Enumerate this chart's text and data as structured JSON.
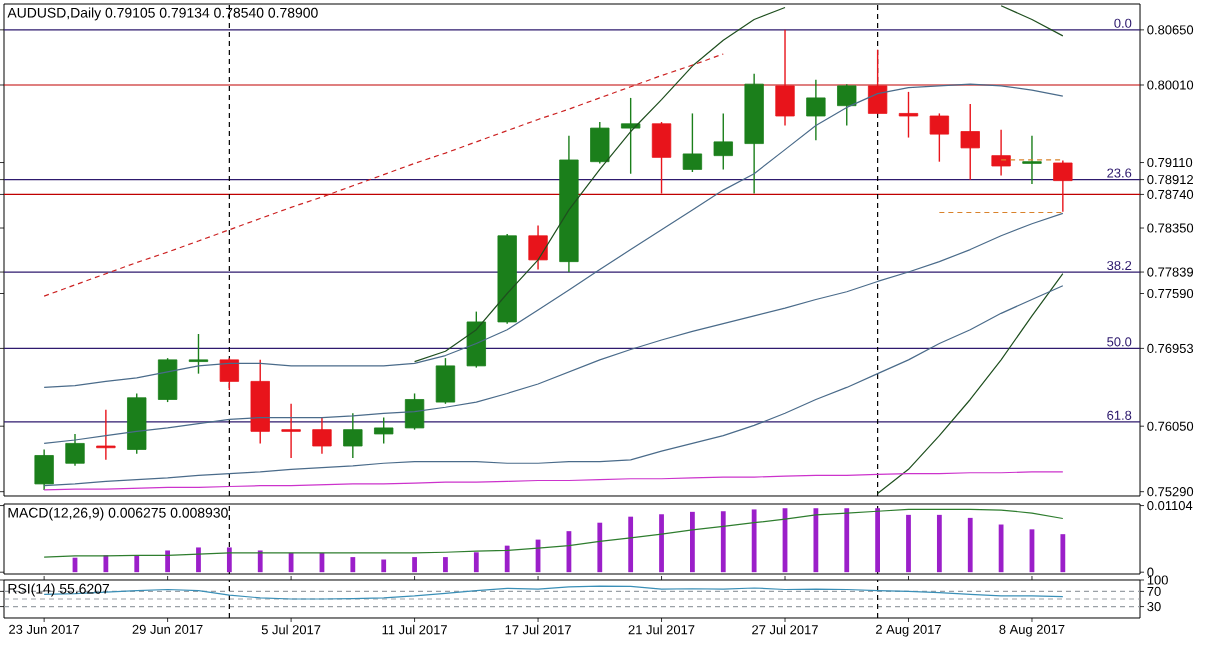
{
  "chart_data": [
    {
      "type": "candlestick",
      "title": "AUDUSD,Daily  0.79105 0.79134 0.78540 0.78900",
      "categories": [
        null,
        null,
        null,
        null,
        null,
        null,
        null,
        null,
        null,
        null,
        null,
        null,
        null,
        null,
        null,
        null,
        null,
        null,
        null,
        null,
        null,
        null,
        null,
        null,
        null,
        null,
        null,
        null,
        null,
        null,
        null,
        null,
        null,
        null
      ],
      "ohlc": [
        [
          0.7538,
          0.7578,
          0.7531,
          0.7571
        ],
        [
          0.7562,
          0.7596,
          0.7559,
          0.7585
        ],
        [
          0.7582,
          0.7624,
          0.7566,
          0.758
        ],
        [
          0.7578,
          0.7643,
          0.7573,
          0.7638
        ],
        [
          0.7636,
          0.7684,
          0.7633,
          0.7682
        ],
        [
          0.768,
          0.7712,
          0.7666,
          0.7682
        ],
        [
          0.7682,
          0.7684,
          0.7647,
          0.7657
        ],
        [
          0.7657,
          0.7682,
          0.7585,
          0.7599
        ],
        [
          0.7601,
          0.7631,
          0.7568,
          0.7599
        ],
        [
          0.7601,
          0.7615,
          0.7573,
          0.7582
        ],
        [
          0.7582,
          0.762,
          0.7568,
          0.7601
        ],
        [
          0.7596,
          0.7615,
          0.7585,
          0.7603
        ],
        [
          0.7603,
          0.7643,
          0.7601,
          0.7636
        ],
        [
          0.7633,
          0.7684,
          0.7631,
          0.7675
        ],
        [
          0.7675,
          0.7738,
          0.7673,
          0.7726
        ],
        [
          0.7726,
          0.7828,
          0.7724,
          0.7826
        ],
        [
          0.7826,
          0.7838,
          0.7787,
          0.7798
        ],
        [
          0.7796,
          0.7942,
          0.7784,
          0.7914
        ],
        [
          0.7912,
          0.7958,
          0.791,
          0.7951
        ],
        [
          0.7951,
          0.7986,
          0.7898,
          0.7956
        ],
        [
          0.7956,
          0.7958,
          0.7875,
          0.7917
        ],
        [
          0.7903,
          0.7968,
          0.79,
          0.7921
        ],
        [
          0.7919,
          0.7968,
          0.7903,
          0.7935
        ],
        [
          0.7933,
          0.8014,
          0.7875,
          0.8002
        ],
        [
          0.8,
          0.8065,
          0.7954,
          0.7965
        ],
        [
          0.7965,
          0.8007,
          0.7937,
          0.7986
        ],
        [
          0.7977,
          0.8002,
          0.7954,
          0.8
        ],
        [
          0.8,
          0.8042,
          0.7968,
          0.7968
        ],
        [
          0.7968,
          0.7993,
          0.794,
          0.7965
        ],
        [
          0.7965,
          0.7968,
          0.7912,
          0.7944
        ],
        [
          0.7947,
          0.7979,
          0.7891,
          0.7928
        ],
        [
          0.7919,
          0.7949,
          0.7896,
          0.7907
        ],
        [
          0.791,
          0.7942,
          0.7886,
          0.7912
        ],
        [
          0.79105,
          0.79134,
          0.7854,
          0.789
        ]
      ],
      "series": [
        {
          "type": "line",
          "color": "#1f4f1f",
          "values": [
            null,
            null,
            null,
            null,
            null,
            null,
            null,
            null,
            null,
            null,
            null,
            null,
            0.768,
            0.7692,
            0.7717,
            0.7759,
            0.7798,
            0.7856,
            0.7903,
            0.7947,
            0.7984,
            0.8023,
            0.8053,
            0.8077,
            0.8091,
            null,
            null,
            null,
            null,
            null,
            null,
            0.8093,
            0.8077,
            0.8058
          ]
        },
        {
          "type": "line",
          "color": "#1f4f1f",
          "values": [
            null,
            null,
            null,
            null,
            null,
            null,
            null,
            null,
            null,
            null,
            null,
            null,
            null,
            null,
            null,
            null,
            null,
            null,
            null,
            null,
            null,
            null,
            null,
            null,
            null,
            null,
            null,
            0.7527,
            0.7555,
            0.7594,
            0.7636,
            0.7682,
            0.7733,
            0.7782
          ]
        },
        {
          "type": "line",
          "color": "#4a6b8a",
          "values": [
            0.765,
            0.7652,
            0.7657,
            0.7661,
            0.7668,
            0.7675,
            0.7678,
            0.7678,
            0.7675,
            0.7675,
            0.7675,
            0.7675,
            0.7678,
            0.7687,
            0.7701,
            0.7717,
            0.774,
            0.7763,
            0.7787,
            0.781,
            0.7833,
            0.7856,
            0.7879,
            0.7898,
            0.7926,
            0.7954,
            0.7975,
            0.7991,
            0.7998,
            0.8,
            0.8002,
            0.8,
            0.7995,
            0.7988
          ]
        },
        {
          "type": "line",
          "color": "#4a6b8a",
          "values": [
            0.7585,
            0.7589,
            0.7594,
            0.7599,
            0.7603,
            0.7608,
            0.7613,
            0.7615,
            0.7615,
            0.7615,
            0.7617,
            0.762,
            0.7622,
            0.7627,
            0.7633,
            0.7643,
            0.7654,
            0.7668,
            0.7682,
            0.7694,
            0.7705,
            0.7715,
            0.7724,
            0.7733,
            0.7742,
            0.7752,
            0.7761,
            0.7773,
            0.7784,
            0.7796,
            0.781,
            0.7826,
            0.784,
            0.7852
          ]
        },
        {
          "type": "line",
          "color": "#4a6b8a",
          "values": [
            0.7536,
            0.7538,
            0.7541,
            0.7543,
            0.7545,
            0.7548,
            0.755,
            0.7552,
            0.7555,
            0.7557,
            0.7559,
            0.7562,
            0.7564,
            0.7564,
            0.7564,
            0.7562,
            0.7562,
            0.7564,
            0.7564,
            0.7566,
            0.7576,
            0.7585,
            0.7594,
            0.7606,
            0.762,
            0.7636,
            0.765,
            0.7666,
            0.7682,
            0.7701,
            0.7717,
            0.7736,
            0.7752,
            0.7768
          ]
        },
        {
          "type": "line",
          "color": "#cc33cc",
          "values": [
            0.7531,
            0.7532,
            0.7532,
            0.7533,
            0.7534,
            0.7534,
            0.7535,
            0.7536,
            0.7536,
            0.7537,
            0.7538,
            0.7538,
            0.7539,
            0.754,
            0.754,
            0.7541,
            0.7542,
            0.7542,
            0.7543,
            0.7544,
            0.7544,
            0.7545,
            0.7546,
            0.7546,
            0.7547,
            0.7548,
            0.7548,
            0.7549,
            0.755,
            0.755,
            0.7551,
            0.7551,
            0.7552,
            0.7552
          ]
        },
        {
          "type": "line",
          "color": "#cc2222",
          "line_style": "dashed",
          "values": [
            0.7756,
            0.7769,
            0.7782,
            0.7795,
            0.7807,
            0.782,
            0.7833,
            0.7846,
            0.7859,
            0.7871,
            0.7884,
            0.7897,
            0.791,
            0.7922,
            0.7935,
            0.7948,
            0.7961,
            0.7973,
            0.7986,
            0.7999,
            0.8012,
            0.8024,
            0.8037,
            null,
            null,
            null,
            null,
            null,
            null,
            null,
            null,
            null,
            null,
            null
          ]
        },
        {
          "type": "line",
          "color": "#d9822b",
          "line_style": "dashed",
          "values": [
            null,
            null,
            null,
            null,
            null,
            null,
            null,
            null,
            null,
            null,
            null,
            null,
            null,
            null,
            null,
            null,
            null,
            null,
            null,
            null,
            null,
            null,
            null,
            null,
            null,
            null,
            null,
            null,
            null,
            0.7853,
            0.7853,
            0.7853,
            0.7853,
            0.7853
          ]
        },
        {
          "type": "line",
          "color": "#d9822b",
          "line_style": "dashed",
          "values": [
            null,
            null,
            null,
            null,
            null,
            null,
            null,
            null,
            null,
            null,
            null,
            null,
            null,
            null,
            null,
            null,
            null,
            null,
            null,
            null,
            null,
            null,
            null,
            null,
            null,
            null,
            null,
            null,
            null,
            null,
            null,
            0.7914,
            0.7914,
            0.7914
          ]
        }
      ],
      "ylim": [
        0.7524,
        0.8095
      ],
      "yticks": [
        {
          "value": 0.8065,
          "label": "0.80650"
        },
        {
          "value": 0.8001,
          "label": "0.80010"
        },
        {
          "value": 0.7911,
          "label": "0.79110"
        },
        {
          "value": 0.78912,
          "label": "0.78912"
        },
        {
          "value": 0.7874,
          "label": "0.78740"
        },
        {
          "value": 0.7835,
          "label": "0.78350"
        },
        {
          "value": 0.77839,
          "label": "0.77839"
        },
        {
          "value": 0.7759,
          "label": "0.77590"
        },
        {
          "value": 0.76953,
          "label": "0.76953"
        },
        {
          "value": 0.7605,
          "label": "0.76050"
        },
        {
          "value": 0.7529,
          "label": "0.75290"
        }
      ],
      "ref_lines": [
        {
          "axis": "y",
          "value": 0.8065,
          "color": "#2e1a6e"
        },
        {
          "axis": "y",
          "value": 0.8001,
          "color": "#c00000"
        },
        {
          "axis": "y",
          "value": 0.78912,
          "color": "#2e1a6e"
        },
        {
          "axis": "y",
          "value": 0.7874,
          "color": "#c00000"
        },
        {
          "axis": "y",
          "value": 0.77839,
          "color": "#2e1a6e"
        },
        {
          "axis": "y",
          "value": 0.76953,
          "color": "#2e1a6e"
        },
        {
          "axis": "y",
          "value": 0.761,
          "color": "#2e1a6e"
        }
      ],
      "annotations": [
        {
          "text": "0.0",
          "y": 0.8065
        },
        {
          "text": "23.6",
          "y": 0.78912
        },
        {
          "text": "38.2",
          "y": 0.77839
        },
        {
          "text": "50.0",
          "y": 0.76953
        },
        {
          "text": "61.8",
          "y": 0.761
        }
      ],
      "tick_labels": "y"
    },
    {
      "type": "bar",
      "title": "MACD(12,26,9) 0.006275 0.008930",
      "categories": [
        null,
        null,
        null,
        null,
        null,
        null,
        null,
        null,
        null,
        null,
        null,
        null,
        null,
        null,
        null,
        null,
        null,
        null,
        null,
        null,
        null,
        null,
        null,
        null,
        null,
        null,
        null,
        null,
        null,
        null,
        null,
        null,
        null,
        null
      ],
      "series": [
        {
          "type": "bar",
          "color": "#9b1fc9",
          "values": [
            null,
            0.0024,
            0.0028,
            0.0028,
            0.0036,
            0.0041,
            0.0041,
            0.0036,
            0.0032,
            0.0032,
            0.0025,
            0.0021,
            0.0025,
            0.0025,
            0.0033,
            0.0044,
            0.0054,
            0.0068,
            0.0082,
            0.0092,
            0.0096,
            0.01,
            0.0101,
            0.0104,
            0.0106,
            0.0106,
            0.0106,
            0.0106,
            0.0095,
            0.0095,
            0.009,
            0.0079,
            0.0071,
            0.0063
          ]
        },
        {
          "type": "line",
          "color": "#2e7d2e",
          "values": [
            0.0025,
            0.0027,
            0.0027,
            0.0028,
            0.0028,
            0.003,
            0.0032,
            0.0032,
            0.0032,
            0.0032,
            0.0032,
            0.0032,
            0.0032,
            0.0033,
            0.0035,
            0.0036,
            0.004,
            0.0044,
            0.0051,
            0.0057,
            0.0063,
            0.007,
            0.0076,
            0.0082,
            0.0088,
            0.0095,
            0.0098,
            0.0101,
            0.0104,
            0.0104,
            0.0104,
            0.0103,
            0.0098,
            0.0089
          ]
        }
      ],
      "ylim": [
        -0.0003,
        0.0113
      ],
      "yticks": [
        {
          "value": 0.01104,
          "label": "0.01104"
        },
        0
      ],
      "tick_labels": "y"
    },
    {
      "type": "line",
      "title": "RSI(14) 55.6207",
      "categories": [
        "23 Jun 2017",
        null,
        null,
        null,
        "29 Jun 2017",
        null,
        null,
        null,
        "5 Jul 2017",
        null,
        null,
        null,
        "11 Jul 2017",
        null,
        null,
        null,
        "17 Jul 2017",
        null,
        null,
        null,
        "21 Jul 2017",
        null,
        null,
        null,
        "27 Jul 2017",
        null,
        null,
        null,
        "2 Aug 2017",
        null,
        null,
        null,
        "8 Aug 2017",
        null
      ],
      "series": [
        {
          "color": "#3a8fb7",
          "values": [
            62,
            64,
            68,
            72,
            75,
            72,
            60,
            53,
            50,
            50,
            51,
            53,
            58,
            65,
            72,
            78,
            76,
            82,
            84,
            83,
            76,
            77,
            76,
            79,
            75,
            76,
            75,
            72,
            70,
            67,
            62,
            58,
            58,
            56
          ]
        }
      ],
      "ylim": [
        0,
        100
      ],
      "yticks": [
        100,
        70,
        30
      ],
      "ref_lines": [
        {
          "axis": "y",
          "value": 70,
          "color": "#9aa0a6",
          "line_style": "dashed"
        },
        {
          "axis": "y",
          "value": 50,
          "color": "#9aa0a6",
          "line_style": "dashed"
        },
        {
          "axis": "y",
          "value": 30,
          "color": "#9aa0a6",
          "line_style": "dashed"
        }
      ]
    }
  ]
}
